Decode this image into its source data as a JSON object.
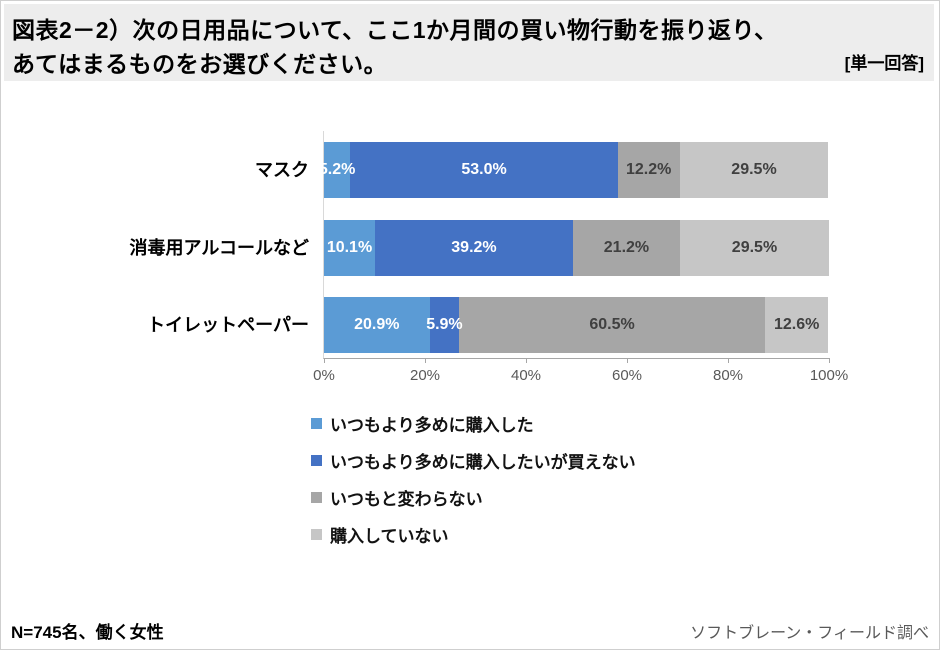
{
  "header": {
    "title_line1": "図表2－2）次の日用品について、ここ1か月間の買い物行動を振り返り、",
    "title_line2": "あてはまるものをお選びください。",
    "answer_type": "[単一回答]"
  },
  "chart_data": {
    "type": "bar",
    "orientation": "horizontal-stacked",
    "title": "",
    "categories": [
      "マスク",
      "消毒用アルコールなど",
      "トイレットペーパー"
    ],
    "series": [
      {
        "name": "いつもより多めに購入した",
        "color": "#5B9BD5",
        "label_color": "#FFFFFF",
        "values": [
          5.2,
          10.1,
          20.9
        ],
        "labels": [
          "5.2%",
          "10.1%",
          "20.9%"
        ]
      },
      {
        "name": "いつもより多めに購入したいが買えない",
        "color": "#4472C4",
        "label_color": "#FFFFFF",
        "values": [
          53.0,
          39.2,
          5.9
        ],
        "labels": [
          "53.0%",
          "39.2%",
          "5.9%"
        ]
      },
      {
        "name": "いつもと変わらない",
        "color": "#A6A6A6",
        "label_color": "#404040",
        "values": [
          12.2,
          21.2,
          60.5
        ],
        "labels": [
          "12.2%",
          "21.2%",
          "60.5%"
        ]
      },
      {
        "name": "購入していない",
        "color": "#C6C6C6",
        "label_color": "#404040",
        "values": [
          29.5,
          29.5,
          12.6
        ],
        "labels": [
          "29.5%",
          "29.5%",
          "12.6%"
        ]
      }
    ],
    "x_axis": {
      "min": 0,
      "max": 100,
      "ticks": [
        "0%",
        "20%",
        "40%",
        "60%",
        "80%",
        "100%"
      ]
    },
    "legend_position": "bottom",
    "grid": false,
    "value_suffix": "%"
  },
  "footer": {
    "sample_note": "N=745名、働く女性",
    "source": "ソフトブレーン・フィールド調べ"
  }
}
